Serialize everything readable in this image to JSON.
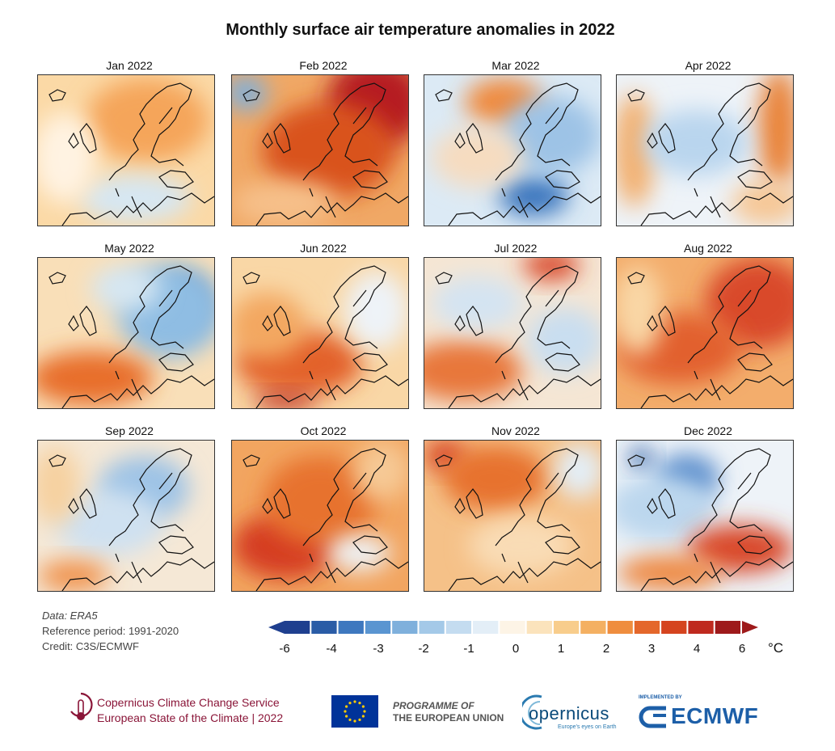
{
  "title": "Monthly surface air temperature anomalies in 2022",
  "panels": [
    {
      "label": "Jan 2022",
      "base": "#fbd9a6",
      "blobs": [
        [
          "#f5a55a",
          0.62,
          0.3,
          0.35,
          0.28
        ],
        [
          "#d6e7f3",
          0.55,
          0.82,
          0.32,
          0.16
        ],
        [
          "#fff3e2",
          0.15,
          0.55,
          0.18,
          0.3
        ]
      ]
    },
    {
      "label": "Feb 2022",
      "base": "#f0a865",
      "blobs": [
        [
          "#b61c22",
          0.82,
          0.18,
          0.28,
          0.3
        ],
        [
          "#d9521f",
          0.55,
          0.5,
          0.38,
          0.32
        ],
        [
          "#7fb0dc",
          0.08,
          0.12,
          0.12,
          0.12
        ],
        [
          "#f6c08a",
          0.3,
          0.85,
          0.3,
          0.15
        ]
      ]
    },
    {
      "label": "Mar 2022",
      "base": "#dceaf5",
      "blobs": [
        [
          "#f08a3c",
          0.45,
          0.18,
          0.22,
          0.16
        ],
        [
          "#3e78bf",
          0.62,
          0.8,
          0.2,
          0.14
        ],
        [
          "#9dc3e6",
          0.72,
          0.4,
          0.28,
          0.26
        ],
        [
          "#f6dcc0",
          0.3,
          0.55,
          0.26,
          0.2
        ]
      ]
    },
    {
      "label": "Apr 2022",
      "base": "#eef3f8",
      "blobs": [
        [
          "#e9843b",
          0.92,
          0.35,
          0.12,
          0.4
        ],
        [
          "#f3b070",
          0.1,
          0.5,
          0.12,
          0.38
        ],
        [
          "#b9d5ee",
          0.45,
          0.45,
          0.3,
          0.22
        ],
        [
          "#f6c796",
          0.85,
          0.85,
          0.2,
          0.15
        ]
      ]
    },
    {
      "label": "May 2022",
      "base": "#f9dfb8",
      "blobs": [
        [
          "#2a5ca6",
          0.82,
          0.3,
          0.14,
          0.16
        ],
        [
          "#8fbde3",
          0.75,
          0.35,
          0.3,
          0.32
        ],
        [
          "#e86e2c",
          0.3,
          0.8,
          0.35,
          0.18
        ],
        [
          "#d6e7f3",
          0.5,
          0.2,
          0.2,
          0.15
        ]
      ]
    },
    {
      "label": "Jun 2022",
      "base": "#f9d7a6",
      "blobs": [
        [
          "#e3622a",
          0.38,
          0.7,
          0.36,
          0.22
        ],
        [
          "#c0392b",
          0.3,
          0.95,
          0.18,
          0.06
        ],
        [
          "#eef3f8",
          0.82,
          0.35,
          0.18,
          0.26
        ],
        [
          "#f3a760",
          0.2,
          0.45,
          0.22,
          0.22
        ]
      ]
    },
    {
      "label": "Jul 2022",
      "base": "#f5e6d4",
      "blobs": [
        [
          "#d9482a",
          0.72,
          0.05,
          0.16,
          0.1
        ],
        [
          "#e8773a",
          0.22,
          0.75,
          0.34,
          0.2
        ],
        [
          "#c9def0",
          0.8,
          0.55,
          0.22,
          0.22
        ],
        [
          "#d4e4f2",
          0.3,
          0.3,
          0.26,
          0.18
        ]
      ]
    },
    {
      "label": "Aug 2022",
      "base": "#f3ad6c",
      "blobs": [
        [
          "#d9482a",
          0.8,
          0.3,
          0.3,
          0.3
        ],
        [
          "#e2612e",
          0.35,
          0.6,
          0.36,
          0.24
        ],
        [
          "#f9d7a6",
          0.12,
          0.35,
          0.14,
          0.3
        ]
      ]
    },
    {
      "label": "Sep 2022",
      "base": "#f5e8d6",
      "blobs": [
        [
          "#9dc3e6",
          0.6,
          0.32,
          0.26,
          0.22
        ],
        [
          "#cfe1f1",
          0.4,
          0.55,
          0.3,
          0.22
        ],
        [
          "#f09048",
          0.2,
          0.9,
          0.2,
          0.1
        ],
        [
          "#f6d1a0",
          0.1,
          0.3,
          0.14,
          0.26
        ]
      ]
    },
    {
      "label": "Oct 2022",
      "base": "#f2a560",
      "blobs": [
        [
          "#d53c22",
          0.3,
          0.7,
          0.3,
          0.22
        ],
        [
          "#e7722f",
          0.5,
          0.4,
          0.32,
          0.3
        ],
        [
          "#eef3f8",
          0.72,
          0.75,
          0.18,
          0.12
        ],
        [
          "#f6c995",
          0.85,
          0.2,
          0.16,
          0.2
        ]
      ]
    },
    {
      "label": "Nov 2022",
      "base": "#f5c188",
      "blobs": [
        [
          "#d53c22",
          0.12,
          0.1,
          0.12,
          0.1
        ],
        [
          "#e7722f",
          0.4,
          0.25,
          0.3,
          0.22
        ],
        [
          "#e3eef7",
          0.88,
          0.2,
          0.14,
          0.18
        ],
        [
          "#f9dcb5",
          0.55,
          0.7,
          0.3,
          0.2
        ]
      ]
    },
    {
      "label": "Dec 2022",
      "base": "#eef3f8",
      "blobs": [
        [
          "#2a5ca6",
          0.14,
          0.12,
          0.07,
          0.07
        ],
        [
          "#5a8dcc",
          0.4,
          0.25,
          0.18,
          0.16
        ],
        [
          "#bcd7ee",
          0.25,
          0.45,
          0.3,
          0.22
        ],
        [
          "#d9482a",
          0.7,
          0.72,
          0.3,
          0.16
        ],
        [
          "#ee8a45",
          0.3,
          0.88,
          0.3,
          0.12
        ]
      ]
    }
  ],
  "meta": {
    "data": "Data: ERA5",
    "reference": "Reference period: 1991-2020",
    "credit": "Credit: C3S/ECMWF"
  },
  "legend": {
    "colors": [
      "#1f3f8f",
      "#2a5ca6",
      "#3e78bf",
      "#5a95d1",
      "#7fb0dc",
      "#a4c9e8",
      "#c4dcf0",
      "#e3eef7",
      "#fdf4e6",
      "#fbe3bc",
      "#f8cd8c",
      "#f4b062",
      "#ef8d3e",
      "#e4672b",
      "#d5441f",
      "#bf2a1f",
      "#9e1a1b"
    ],
    "ticks": [
      "-6",
      "-4",
      "-3",
      "-2",
      "-1",
      "0",
      "1",
      "2",
      "3",
      "4",
      "6"
    ],
    "unit": "°C"
  },
  "footer": {
    "c3s_line1": "Copernicus Climate Change Service",
    "c3s_line2": "European State of the Climate | 2022",
    "eu_line1": "PROGRAMME OF",
    "eu_line2": "THE EUROPEAN UNION",
    "copernicus": "opernicus",
    "copernicus_slogan": "Europe's eyes on Earth",
    "ecmwf_impl": "IMPLEMENTED BY",
    "ecmwf": "ECMWF"
  }
}
